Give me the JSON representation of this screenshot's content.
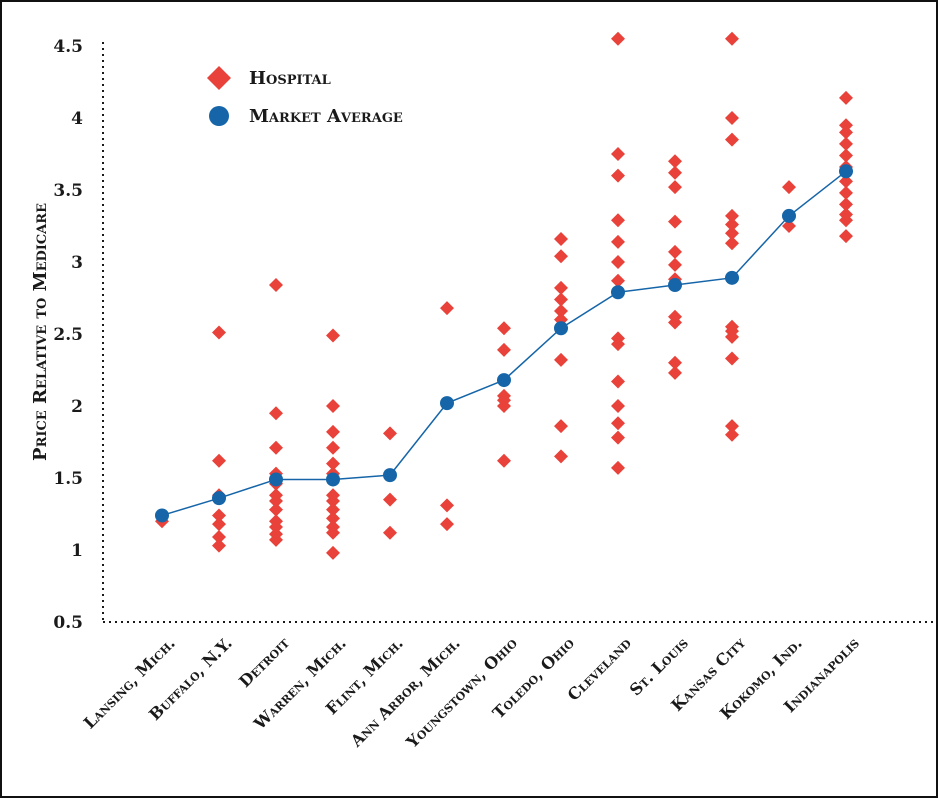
{
  "chart_data": {
    "type": "scatter",
    "title": "",
    "xlabel": "",
    "ylabel": "Price Relative to Medicare",
    "ylim": [
      0.5,
      4.5
    ],
    "yticks": [
      "0.5",
      "1",
      "1.5",
      "2",
      "2.5",
      "3",
      "3.5",
      "4",
      "4.5"
    ],
    "categories": [
      "Lansing, Mich.",
      "Buffalo, N.Y.",
      "Detroit",
      "Warren, Mich.",
      "Flint, Mich.",
      "Ann Arbor, Mich.",
      "Youngstown, Ohio",
      "Toledo, Ohio",
      "Cleveland",
      "St. Louis",
      "Kansas City",
      "Kokomo, Ind.",
      "Indianapolis"
    ],
    "legend": {
      "position": "top-left",
      "entries": [
        "Hospital",
        "Market Average"
      ]
    },
    "colors": {
      "hospital": "#e8423a",
      "market_average": "#1565a8",
      "axis": "#1a1a1a"
    },
    "series": [
      {
        "name": "Hospital",
        "marker": "diamond",
        "points": [
          [
            [
              1.24,
              1.2
            ]
          ],
          [
            [
              2.51,
              1.62,
              1.38,
              1.24,
              1.18,
              1.09,
              1.03
            ]
          ],
          [
            [
              2.84,
              1.95,
              1.71,
              1.53,
              1.46,
              1.38,
              1.34,
              1.28,
              1.2,
              1.16,
              1.11,
              1.07
            ]
          ],
          [
            [
              2.49,
              2.0,
              1.82,
              1.71,
              1.6,
              1.53,
              1.38,
              1.34,
              1.28,
              1.22,
              1.16,
              1.12,
              0.98
            ]
          ],
          [
            [
              1.81,
              1.35,
              1.12
            ]
          ],
          [
            [
              2.68,
              1.31,
              1.18
            ]
          ],
          [
            [
              2.54,
              2.39,
              2.07,
              2.04,
              2.0,
              1.62
            ]
          ],
          [
            [
              3.16,
              3.04,
              2.82,
              2.74,
              2.66,
              2.6,
              2.32,
              1.86,
              1.65
            ]
          ],
          [
            [
              4.55,
              3.75,
              3.6,
              3.29,
              3.14,
              3.0,
              2.87,
              2.47,
              2.43,
              2.17,
              2.0,
              1.88,
              1.78,
              1.57
            ]
          ],
          [
            [
              3.7,
              3.62,
              3.52,
              3.28,
              3.07,
              2.98,
              2.88,
              2.62,
              2.58,
              2.3,
              2.23
            ]
          ],
          [
            [
              4.55,
              4.0,
              3.85,
              3.32,
              3.26,
              3.2,
              3.13,
              2.55,
              2.52,
              2.48,
              2.33,
              1.86,
              1.8
            ]
          ],
          [
            [
              3.52,
              3.25
            ]
          ],
          [
            [
              4.14,
              3.95,
              3.9,
              3.82,
              3.74,
              3.66,
              3.56,
              3.48,
              3.4,
              3.33,
              3.29,
              3.18
            ]
          ]
        ]
      },
      {
        "name": "Market Average",
        "marker": "circle",
        "values": [
          1.24,
          1.36,
          1.49,
          1.49,
          1.52,
          2.02,
          2.18,
          2.54,
          2.79,
          2.84,
          2.89,
          3.32,
          3.63
        ]
      }
    ]
  }
}
